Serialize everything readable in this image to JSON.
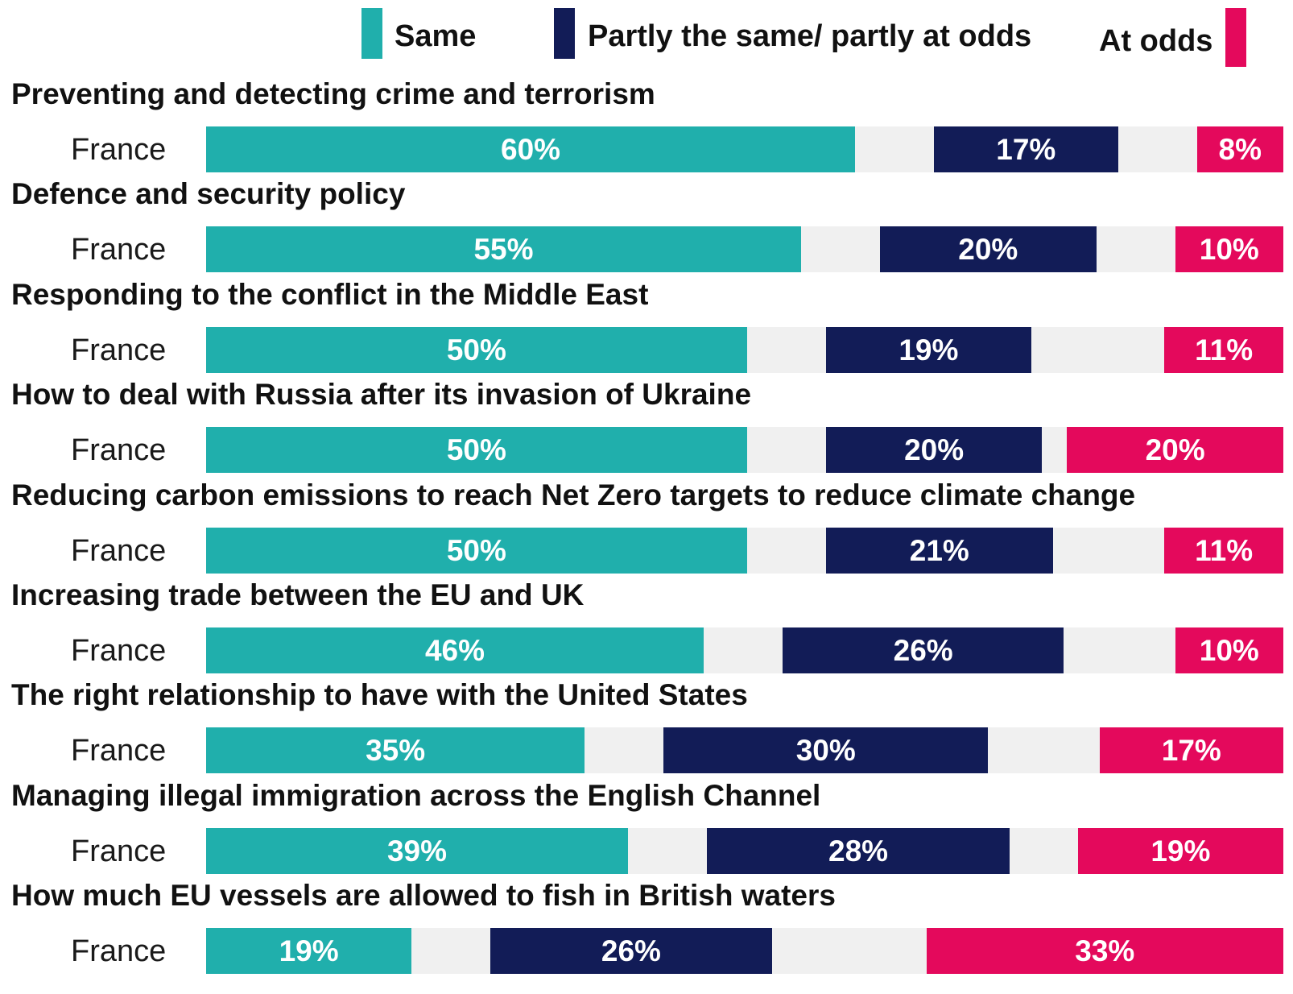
{
  "legend": {
    "same_label": "Same",
    "partly_label": "Partly the same/ partly at odds",
    "odds_label": "At odds"
  },
  "colors": {
    "same": "#20afac",
    "partly": "#121c57",
    "odds": "#e4095c",
    "track": "#f0f0f0"
  },
  "chart_data": {
    "type": "bar",
    "orientation": "horizontal-segmented",
    "title": "",
    "series": [
      {
        "name": "Same",
        "key": "same"
      },
      {
        "name": "Partly the same/ partly at odds",
        "key": "partly"
      },
      {
        "name": "At odds",
        "key": "odds"
      }
    ],
    "rows": [
      {
        "title": "Preventing and detecting crime and terrorism",
        "country": "France",
        "same": 60,
        "partly": 17,
        "odds": 8,
        "same_label": "60%",
        "partly_label": "17%",
        "odds_label": "8%"
      },
      {
        "title": "Defence and security policy",
        "country": "France",
        "same": 55,
        "partly": 20,
        "odds": 10,
        "same_label": "55%",
        "partly_label": "20%",
        "odds_label": "10%"
      },
      {
        "title": "Responding to the conflict in the Middle East",
        "country": "France",
        "same": 50,
        "partly": 19,
        "odds": 11,
        "same_label": "50%",
        "partly_label": "19%",
        "odds_label": "11%"
      },
      {
        "title": "How to deal with Russia after its invasion of Ukraine",
        "country": "France",
        "same": 50,
        "partly": 20,
        "odds": 20,
        "same_label": "50%",
        "partly_label": "20%",
        "odds_label": "20%"
      },
      {
        "title": "Reducing carbon emissions to reach Net Zero targets to reduce climate change",
        "country": "France",
        "same": 50,
        "partly": 21,
        "odds": 11,
        "same_label": "50%",
        "partly_label": "21%",
        "odds_label": "11%"
      },
      {
        "title": "Increasing trade between the EU and UK",
        "country": "France",
        "same": 46,
        "partly": 26,
        "odds": 10,
        "same_label": "46%",
        "partly_label": "26%",
        "odds_label": "10%"
      },
      {
        "title": "The right relationship to have with the United States",
        "country": "France",
        "same": 35,
        "partly": 30,
        "odds": 17,
        "same_label": "35%",
        "partly_label": "30%",
        "odds_label": "17%"
      },
      {
        "title": "Managing illegal immigration across the English Channel",
        "country": "France",
        "same": 39,
        "partly": 28,
        "odds": 19,
        "same_label": "39%",
        "partly_label": "28%",
        "odds_label": "19%"
      },
      {
        "title": "How much EU vessels are allowed to fish in British waters",
        "country": "France",
        "same": 19,
        "partly": 26,
        "odds": 33,
        "same_label": "19%",
        "partly_label": "26%",
        "odds_label": "33%"
      }
    ]
  }
}
